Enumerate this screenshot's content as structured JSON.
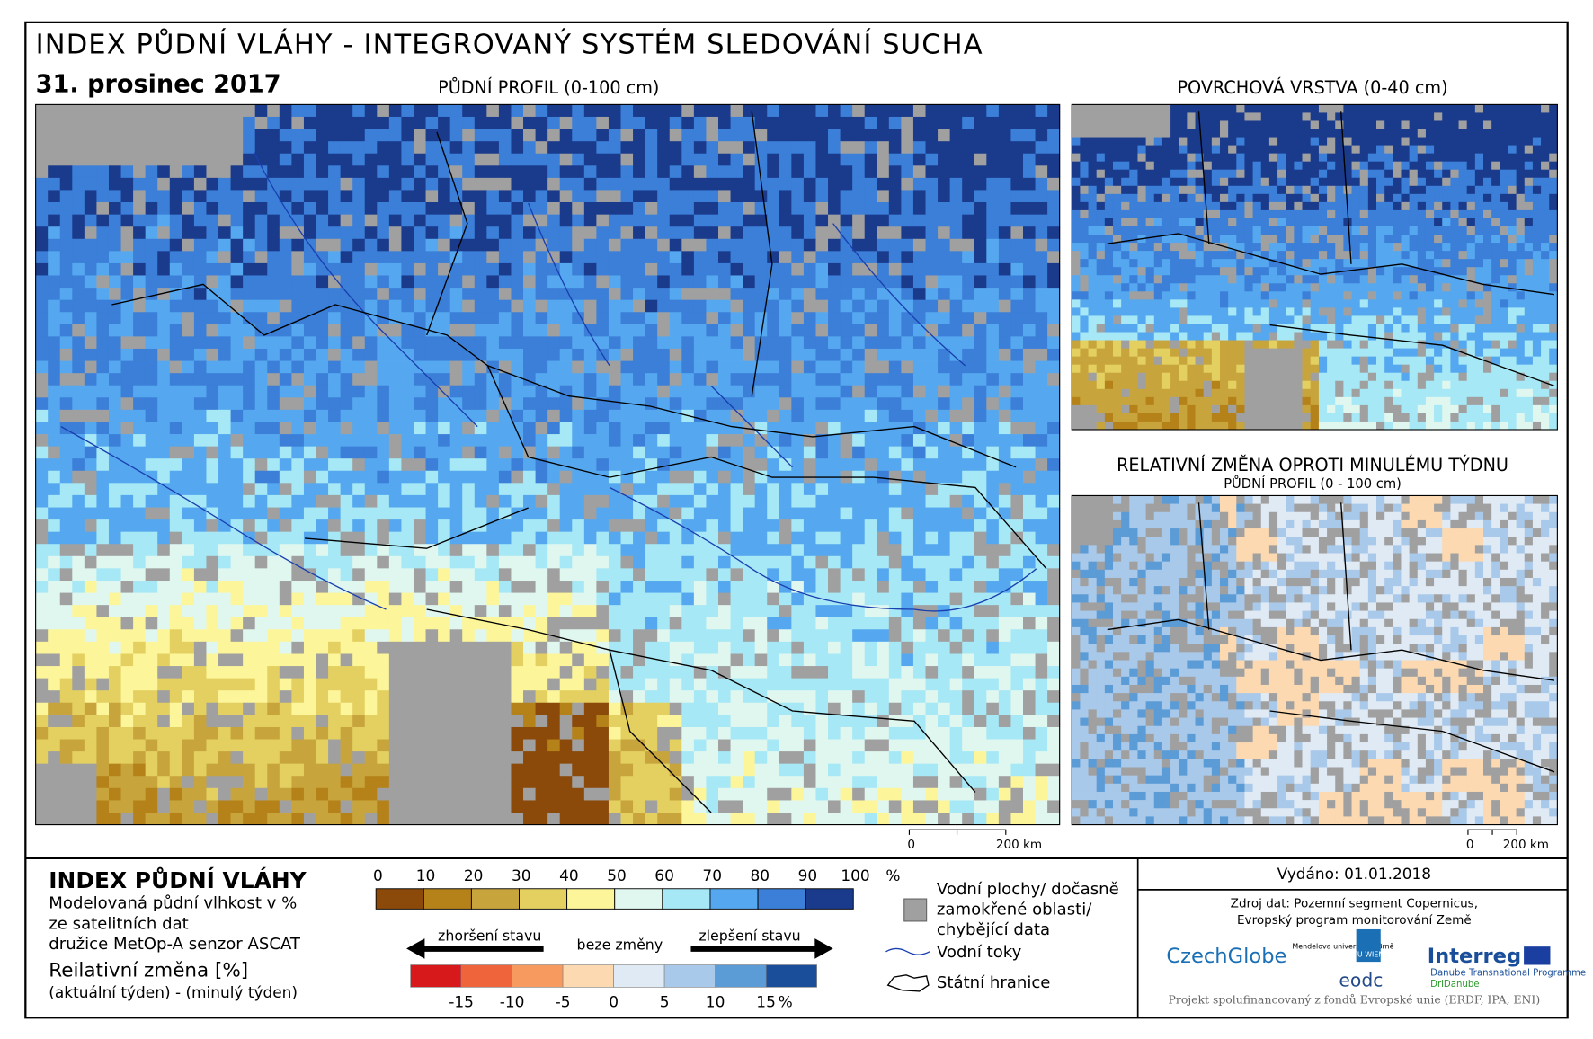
{
  "header": {
    "title": "INDEX PŮDNÍ VLÁHY - INTEGROVANÝ SYSTÉM SLEDOVÁNÍ SUCHA",
    "date": "31. prosinec 2017"
  },
  "maps": {
    "main": {
      "title": "PŮDNÍ PROFIL (0-100 cm)"
    },
    "surface": {
      "title": "POVRCHOVÁ VRSTVA (0-40 cm)"
    },
    "change": {
      "title": "RELATIVNÍ ZMĚNA OPROTI MINULÉMU TÝDNU",
      "subtitle": "PŮDNÍ PROFIL (0 - 100 cm)"
    }
  },
  "scale_bar": {
    "start": "0",
    "end": "200 km"
  },
  "legend": {
    "title": "INDEX PŮDNÍ VLÁHY",
    "description": [
      "Modelovaná půdní vlhkost v %",
      "ze satelitních dat",
      "družice MetOp-A senzor ASCAT"
    ],
    "change_title": "Reilativní změna [%]",
    "change_description": "(aktuální týden) - (minulý týden)",
    "moisture_scale": {
      "colors": [
        "#8b4a0a",
        "#b5821a",
        "#c8a53c",
        "#e3d060",
        "#fcf59a",
        "#e0f7f0",
        "#a6e8f5",
        "#55a8ef",
        "#3b7fd8",
        "#1a3a8c"
      ],
      "ticks": [
        "0",
        "10",
        "20",
        "30",
        "40",
        "50",
        "60",
        "70",
        "80",
        "90",
        "100"
      ],
      "unit": "%"
    },
    "change_scale": {
      "colors": [
        "#d7191c",
        "#f0643c",
        "#f79a60",
        "#fcd9b0",
        "#e0eaf5",
        "#a9c9ea",
        "#5b9bd6",
        "#1a4e9a"
      ],
      "ticks": [
        "-15",
        "-10",
        "-5",
        "0",
        "5",
        "10",
        "15"
      ],
      "unit": "%"
    },
    "arrows": {
      "worse": "zhoršení stavu",
      "none": "beze změny",
      "better": "zlepšení stavu"
    },
    "symbols": {
      "water": [
        "Vodní plochy/ dočasně",
        "zamokřené oblasti/",
        "chybějící data"
      ],
      "rivers": "Vodní toky",
      "borders": "Státní hranice"
    }
  },
  "footer": {
    "issued": "Vydáno: 01.01.2018",
    "source": [
      "Zdroj dat: Pozemní segment Copernicus,",
      "Evropský program monitorování Země"
    ],
    "logos": {
      "czechglobe": "CzechGlobe",
      "mendelu": "Mendelova univerzita v Brně",
      "tu": "TU WIEN",
      "eodc": "eodc",
      "interreg": "Interreg",
      "programme": "Danube Transnational Programme",
      "project": "DriDanube"
    },
    "funding": "Projekt spolufinancovaný z fondů Evropské unie (ERDF, IPA, ENI)"
  }
}
